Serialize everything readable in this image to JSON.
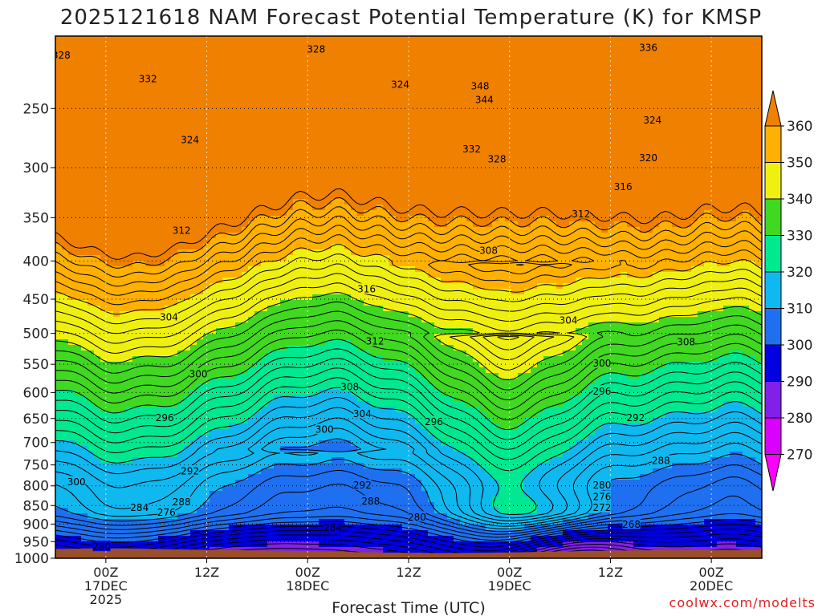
{
  "chart_data": {
    "type": "contour",
    "title": "2025121618 NAM Forecast Potential Temperature (K) for KMSP",
    "xlabel": "Forecast Time (UTC)",
    "ylabel": "",
    "station": "KMSP",
    "variable": "Potential Temperature (K)",
    "y_axis": {
      "type": "log",
      "reversed": true,
      "range": [
        1000,
        200
      ],
      "ticks": [
        "250",
        "300",
        "350",
        "400",
        "450",
        "500",
        "550",
        "600",
        "650",
        "700",
        "750",
        "800",
        "850",
        "900",
        "950",
        "1000"
      ]
    },
    "x_axis": {
      "range_hours": [
        -6,
        78
      ],
      "ticks": [
        {
          "hour": 0,
          "line1": "00Z",
          "line2": "17DEC",
          "line3": "2025"
        },
        {
          "hour": 12,
          "line1": "12Z",
          "line2": "",
          "line3": ""
        },
        {
          "hour": 24,
          "line1": "00Z",
          "line2": "18DEC",
          "line3": ""
        },
        {
          "hour": 36,
          "line1": "12Z",
          "line2": "",
          "line3": ""
        },
        {
          "hour": 48,
          "line1": "00Z",
          "line2": "19DEC",
          "line3": ""
        },
        {
          "hour": 60,
          "line1": "12Z",
          "line2": "",
          "line3": ""
        },
        {
          "hour": 72,
          "line1": "00Z",
          "line2": "20DEC",
          "line3": ""
        }
      ]
    },
    "grid": true,
    "colorbar": {
      "position": "right",
      "labels": [
        "270",
        "280",
        "290",
        "300",
        "310",
        "320",
        "330",
        "340",
        "350",
        "360"
      ],
      "colors": [
        "#ff00ff",
        "#d800ff",
        "#8020e8",
        "#0000e0",
        "#1e70f0",
        "#10b8f0",
        "#00e890",
        "#40d820",
        "#f0f010",
        "#ffb000",
        "#f08000"
      ],
      "min_color": "#ff00ff",
      "max_color": "#f08000"
    },
    "surface_color": "#9a4e2a",
    "contour_interval": 2,
    "contour_labels": [
      {
        "text": "328",
        "hour": -5.3,
        "p": 212
      },
      {
        "text": "328",
        "hour": 25,
        "p": 208
      },
      {
        "text": "332",
        "hour": 5,
        "p": 228
      },
      {
        "text": "324",
        "hour": 10,
        "p": 275
      },
      {
        "text": "324",
        "hour": 35,
        "p": 232
      },
      {
        "text": "348",
        "hour": 44.5,
        "p": 233
      },
      {
        "text": "344",
        "hour": 45,
        "p": 243
      },
      {
        "text": "336",
        "hour": 64.5,
        "p": 207
      },
      {
        "text": "324",
        "hour": 65,
        "p": 259
      },
      {
        "text": "332",
        "hour": 43.5,
        "p": 283
      },
      {
        "text": "328",
        "hour": 46.5,
        "p": 292
      },
      {
        "text": "320",
        "hour": 64.5,
        "p": 291
      },
      {
        "text": "316",
        "hour": 61.5,
        "p": 318
      },
      {
        "text": "312",
        "hour": 56.5,
        "p": 346
      },
      {
        "text": "312",
        "hour": 9,
        "p": 364
      },
      {
        "text": "308",
        "hour": 45.5,
        "p": 387
      },
      {
        "text": "316",
        "hour": 31,
        "p": 436
      },
      {
        "text": "304",
        "hour": 7.5,
        "p": 475
      },
      {
        "text": "304",
        "hour": 55,
        "p": 480
      },
      {
        "text": "312",
        "hour": 32,
        "p": 512
      },
      {
        "text": "308",
        "hour": 69,
        "p": 513
      },
      {
        "text": "300",
        "hour": 59,
        "p": 548
      },
      {
        "text": "300",
        "hour": 11,
        "p": 566
      },
      {
        "text": "308",
        "hour": 29,
        "p": 589
      },
      {
        "text": "296",
        "hour": 59,
        "p": 597
      },
      {
        "text": "304",
        "hour": 30.5,
        "p": 640
      },
      {
        "text": "296",
        "hour": 7,
        "p": 648
      },
      {
        "text": "292",
        "hour": 63,
        "p": 648
      },
      {
        "text": "300",
        "hour": 26,
        "p": 672
      },
      {
        "text": "296",
        "hour": 39,
        "p": 656
      },
      {
        "text": "288",
        "hour": 66,
        "p": 740
      },
      {
        "text": "292",
        "hour": 10,
        "p": 764
      },
      {
        "text": "300",
        "hour": -3.5,
        "p": 790
      },
      {
        "text": "292",
        "hour": 30.5,
        "p": 798
      },
      {
        "text": "280",
        "hour": 59,
        "p": 798
      },
      {
        "text": "276",
        "hour": 59,
        "p": 827
      },
      {
        "text": "288",
        "hour": 31.5,
        "p": 838
      },
      {
        "text": "288",
        "hour": 9,
        "p": 840
      },
      {
        "text": "284",
        "hour": 4,
        "p": 855
      },
      {
        "text": "272",
        "hour": 59,
        "p": 855
      },
      {
        "text": "276",
        "hour": 7.2,
        "p": 867
      },
      {
        "text": "280",
        "hour": 37,
        "p": 880
      },
      {
        "text": "268",
        "hour": 62.5,
        "p": 900
      },
      {
        "text": "284",
        "hour": 27,
        "p": 909
      },
      {
        "text": "280",
        "hour": -0.5,
        "p": 964
      }
    ]
  },
  "credit": "coolwx.com/modelts"
}
